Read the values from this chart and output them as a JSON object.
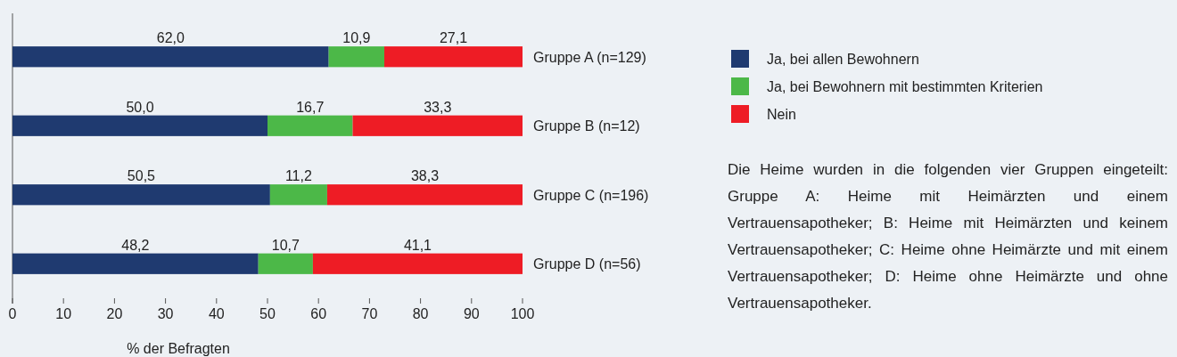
{
  "chart_data": {
    "type": "bar",
    "orientation": "horizontal",
    "stacked": true,
    "categories": [
      "Gruppe A (n=129)",
      "Gruppe B (n=12)",
      "Gruppe C (n=196)",
      "Gruppe D (n=56)"
    ],
    "series": [
      {
        "name": "Ja, bei allen Bewohnern",
        "color": "#1f3a70",
        "values": [
          62.0,
          50.0,
          50.5,
          48.2
        ],
        "value_labels": [
          "62,0",
          "50,0",
          "50,5",
          "48,2"
        ]
      },
      {
        "name": "Ja, bei Bewohnern mit bestimmten Kriterien",
        "color": "#4cb848",
        "values": [
          10.9,
          16.7,
          11.2,
          10.7
        ],
        "value_labels": [
          "10,9",
          "16,7",
          "11,2",
          "10,7"
        ]
      },
      {
        "name": "Nein",
        "color": "#ee1c25",
        "values": [
          27.1,
          33.3,
          38.3,
          41.1
        ],
        "value_labels": [
          "27,1",
          "33,3",
          "38,3",
          "41,1"
        ]
      }
    ],
    "xlim": [
      0,
      100
    ],
    "xticks": [
      0,
      10,
      20,
      30,
      40,
      50,
      60,
      70,
      80,
      90,
      100
    ],
    "xlabel": "% der Befragten",
    "legend": "right",
    "grid": false,
    "annotations": [
      "Die Heime wurden in die folgenden vier Gruppen eingeteilt: Gruppe A: Heime mit Heimärzten und einem Vertrauensapotheker; B: Heime mit Heimärzten und keinem Vertrauensapotheker; C: Heime ohne Heimärzte und mit einem Vertrauensapotheker; D: Heime ohne Heimärzte und ohne Vertrauensapotheker."
    ]
  }
}
